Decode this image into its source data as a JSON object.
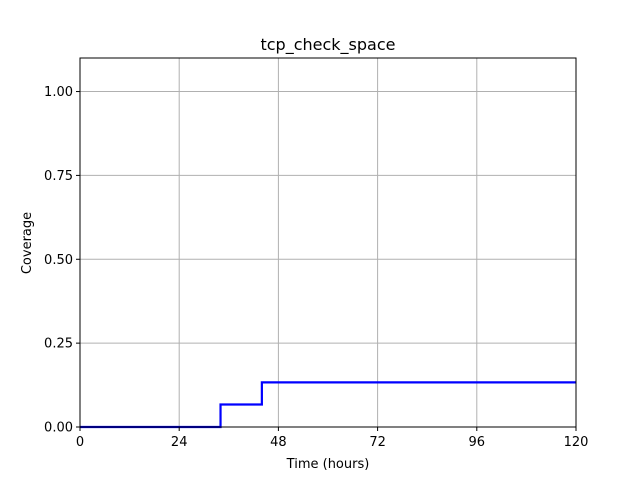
{
  "chart_data": {
    "type": "line",
    "title": "tcp_check_space",
    "xlabel": "Time (hours)",
    "ylabel": "Coverage",
    "xlim": [
      0,
      120
    ],
    "ylim": [
      0,
      1.1
    ],
    "xticks": [
      0,
      24,
      48,
      72,
      96,
      120
    ],
    "xtick_labels": [
      "0",
      "24",
      "48",
      "72",
      "96",
      "120"
    ],
    "yticks": [
      0,
      0.25,
      0.5,
      0.75,
      1.0
    ],
    "ytick_labels": [
      "0.00",
      "0.25",
      "0.50",
      "0.75",
      "1.00"
    ],
    "grid": true,
    "series": [
      {
        "color": "#0000ff",
        "step": true,
        "x": [
          0,
          34,
          34,
          44,
          44,
          120
        ],
        "y": [
          0,
          0,
          0.067,
          0.067,
          0.133,
          0.133
        ]
      }
    ]
  }
}
